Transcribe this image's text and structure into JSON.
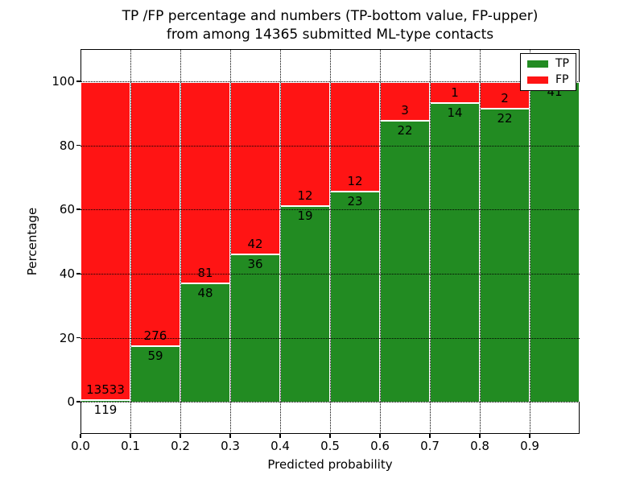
{
  "chart_data": {
    "type": "bar",
    "stacked": true,
    "normalized": "percent",
    "title_line1": "TP /FP percentage and numbers (TP-bottom value, FP-upper)",
    "title_line2": "from among 14365 submitted ML-type contacts",
    "xlabel": "Predicted probability",
    "ylabel": "Percentage",
    "total_contacts": 14365,
    "categories": [
      "0.0",
      "0.1",
      "0.2",
      "0.3",
      "0.4",
      "0.5",
      "0.6",
      "0.7",
      "0.8",
      "0.9"
    ],
    "bin_width": 0.1,
    "series": [
      {
        "name": "TP",
        "color": "#228B22",
        "values": [
          119,
          59,
          48,
          36,
          19,
          23,
          22,
          14,
          22,
          41
        ]
      },
      {
        "name": "FP",
        "color": "#FF1414",
        "values": [
          13533,
          276,
          81,
          42,
          12,
          12,
          3,
          1,
          2,
          0
        ]
      }
    ],
    "tp_percent": [
      0.9,
      17.6,
      37.2,
      46.2,
      61.3,
      65.7,
      88.0,
      93.3,
      91.7,
      100.0
    ],
    "bar_edge_color": "#ffffff",
    "xtick_labels": [
      "0.0",
      "0.1",
      "0.2",
      "0.3",
      "0.4",
      "0.5",
      "0.6",
      "0.7",
      "0.8",
      "0.9"
    ],
    "yticks": [
      0,
      20,
      40,
      60,
      80,
      100
    ],
    "xlim": [
      0.0,
      1.0
    ],
    "ylim": [
      -10,
      110
    ],
    "grid": "dotted",
    "legend": {
      "position": "upper right",
      "entries": [
        "TP",
        "FP"
      ]
    },
    "annotation_rule": "TP-bottom value, FP-upper"
  }
}
